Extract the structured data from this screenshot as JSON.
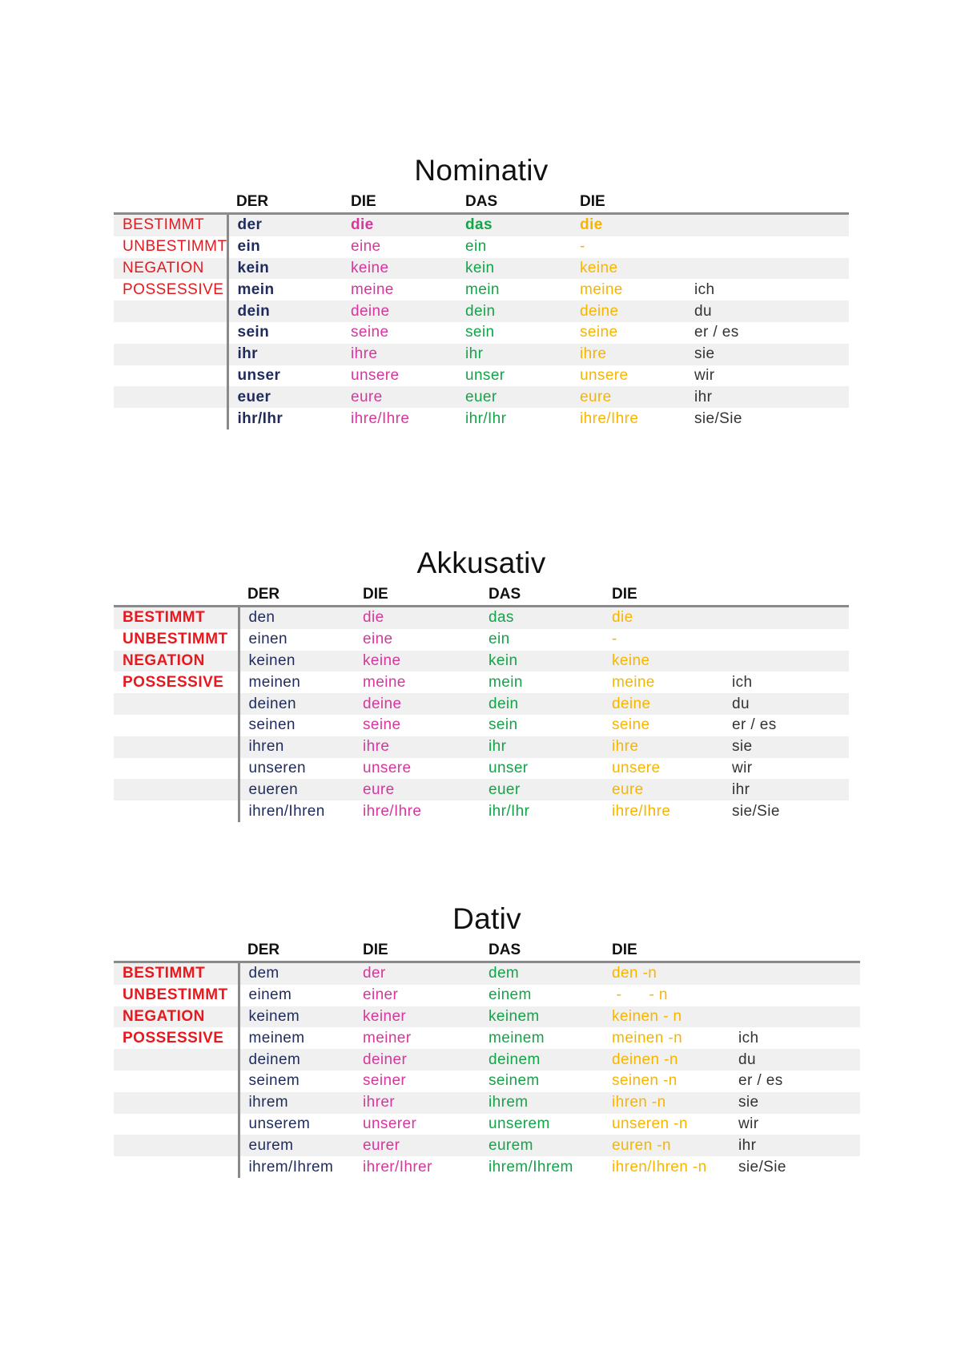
{
  "headers": [
    "DER",
    "DIE",
    "DAS",
    "DIE",
    ""
  ],
  "row_labels": [
    "BESTIMMT",
    "UNBESTIMMT",
    "NEGATION",
    "POSSESSIVE",
    "",
    "",
    "",
    "",
    "",
    ""
  ],
  "colors": {
    "der": "#1f2b5c",
    "die": "#d6379c",
    "das": "#15a34a",
    "plural": "#f7b500",
    "label": "#e8191e"
  },
  "tables": [
    {
      "title": "Nominativ",
      "rows": [
        [
          "der",
          "die",
          "das",
          "die",
          ""
        ],
        [
          "ein",
          "eine",
          "ein",
          "-",
          ""
        ],
        [
          "kein",
          "keine",
          "kein",
          "keine",
          ""
        ],
        [
          "mein",
          "meine",
          "mein",
          "meine",
          "ich"
        ],
        [
          "dein",
          "deine",
          "dein",
          "deine",
          "du"
        ],
        [
          "sein",
          "seine",
          "sein",
          "seine",
          "er / es"
        ],
        [
          "ihr",
          "ihre",
          "ihr",
          "ihre",
          "sie"
        ],
        [
          "unser",
          "unsere",
          "unser",
          "unsere",
          "wir"
        ],
        [
          "euer",
          "eure",
          "euer",
          "eure",
          "ihr"
        ],
        [
          "ihr/Ihr",
          "ihre/Ihre",
          "ihr/Ihr",
          "ihre/Ihre",
          "sie/Sie"
        ]
      ]
    },
    {
      "title": "Akkusativ",
      "rows": [
        [
          "den",
          "die",
          "das",
          "die",
          ""
        ],
        [
          "einen",
          "eine",
          "ein",
          "-",
          ""
        ],
        [
          "keinen",
          "keine",
          "kein",
          "keine",
          ""
        ],
        [
          "meinen",
          "meine",
          "mein",
          "meine",
          "ich"
        ],
        [
          "deinen",
          "deine",
          "dein",
          "deine",
          "du"
        ],
        [
          "seinen",
          "seine",
          "sein",
          "seine",
          "er / es"
        ],
        [
          "ihren",
          "ihre",
          "ihr",
          "ihre",
          "sie"
        ],
        [
          "unseren",
          "unsere",
          "unser",
          "unsere",
          "wir"
        ],
        [
          "eueren",
          "eure",
          "euer",
          "eure",
          "ihr"
        ],
        [
          "ihren/Ihren",
          "ihre/Ihre",
          "ihr/Ihr",
          "ihre/Ihre",
          "sie/Sie"
        ]
      ]
    },
    {
      "title": "Dativ",
      "rows": [
        [
          "dem",
          "der",
          "dem",
          "den -n",
          ""
        ],
        [
          "einem",
          "einer",
          "einem",
          " -      - n",
          ""
        ],
        [
          "keinem",
          "keiner",
          "keinem",
          "keinen - n",
          ""
        ],
        [
          "meinem",
          "meiner",
          "meinem",
          "meinen -n",
          "ich"
        ],
        [
          "deinem",
          "deiner",
          "deinem",
          "deinen -n",
          "du"
        ],
        [
          "seinem",
          "seiner",
          "seinem",
          "seinen -n",
          "er / es"
        ],
        [
          "ihrem",
          "ihrer",
          "ihrem",
          "ihren -n",
          "sie"
        ],
        [
          "unserem",
          "unserer",
          "unserem",
          "unseren -n",
          "wir"
        ],
        [
          "eurem",
          "eurer",
          "eurem",
          "euren -n",
          "ihr"
        ],
        [
          "ihrem/Ihrem",
          "ihrer/Ihrer",
          "ihrem/Ihrem",
          "ihren/Ihren -n",
          "sie/Sie"
        ]
      ]
    }
  ]
}
